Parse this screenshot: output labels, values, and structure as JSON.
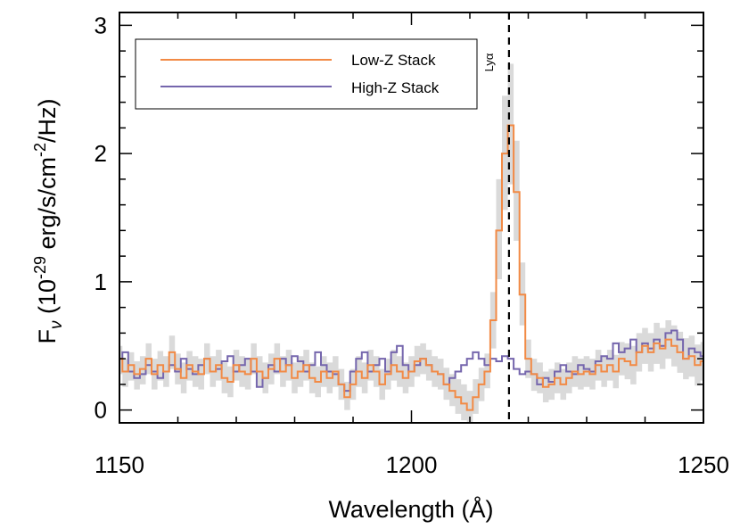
{
  "chart_data": {
    "type": "line",
    "title": "",
    "xlabel": "Wavelength (Å)",
    "ylabel": {
      "prefix": "F",
      "sub": "ν",
      "mid": " (10",
      "exp1": "-29",
      "mid2": " erg/s/cm",
      "exp2": "-2",
      "suffix": "/Hz)"
    },
    "xlim": [
      1150,
      1250
    ],
    "ylim": [
      -0.1,
      3.1
    ],
    "xticks": [
      1150,
      1200,
      1250
    ],
    "yticks": [
      0,
      1,
      2,
      3
    ],
    "grid": false,
    "legend_position": "top-left",
    "annotation": {
      "text": "Lyα",
      "x": 1216.7,
      "style": "dashed vertical line"
    },
    "colors": {
      "low_z": "#f28a45",
      "high_z": "#7566ad",
      "band": "#dadada",
      "marker": "#000000"
    },
    "x": [
      1150,
      1151,
      1152,
      1153,
      1154,
      1155,
      1156,
      1157,
      1158,
      1159,
      1160,
      1161,
      1162,
      1163,
      1164,
      1165,
      1166,
      1167,
      1168,
      1169,
      1170,
      1171,
      1172,
      1173,
      1174,
      1175,
      1176,
      1177,
      1178,
      1179,
      1180,
      1181,
      1182,
      1183,
      1184,
      1185,
      1186,
      1187,
      1188,
      1189,
      1190,
      1191,
      1192,
      1193,
      1194,
      1195,
      1196,
      1197,
      1198,
      1199,
      1200,
      1201,
      1202,
      1203,
      1204,
      1205,
      1206,
      1207,
      1208,
      1209,
      1210,
      1211,
      1212,
      1213,
      1214,
      1215,
      1216,
      1217,
      1218,
      1219,
      1220,
      1221,
      1222,
      1223,
      1224,
      1225,
      1226,
      1227,
      1228,
      1229,
      1230,
      1231,
      1232,
      1233,
      1234,
      1235,
      1236,
      1237,
      1238,
      1239,
      1240,
      1241,
      1242,
      1243,
      1244,
      1245,
      1246,
      1247,
      1248,
      1249,
      1250
    ],
    "series": [
      {
        "name": "Low-Z Stack",
        "values": [
          0.4,
          0.3,
          0.35,
          0.28,
          0.32,
          0.4,
          0.28,
          0.35,
          0.3,
          0.45,
          0.32,
          0.25,
          0.35,
          0.3,
          0.28,
          0.4,
          0.3,
          0.35,
          0.25,
          0.22,
          0.35,
          0.3,
          0.28,
          0.4,
          0.3,
          0.25,
          0.32,
          0.4,
          0.3,
          0.35,
          0.25,
          0.3,
          0.35,
          0.25,
          0.22,
          0.3,
          0.25,
          0.3,
          0.2,
          0.1,
          0.2,
          0.3,
          0.25,
          0.35,
          0.3,
          0.2,
          0.28,
          0.35,
          0.3,
          0.25,
          0.3,
          0.38,
          0.4,
          0.35,
          0.3,
          0.28,
          0.2,
          0.15,
          0.1,
          0.05,
          0.0,
          0.1,
          0.2,
          0.3,
          0.7,
          1.4,
          2.0,
          2.22,
          1.7,
          0.9,
          0.4,
          0.28,
          0.25,
          0.18,
          0.2,
          0.25,
          0.2,
          0.25,
          0.3,
          0.28,
          0.3,
          0.28,
          0.35,
          0.3,
          0.35,
          0.3,
          0.4,
          0.38,
          0.35,
          0.45,
          0.5,
          0.45,
          0.52,
          0.48,
          0.55,
          0.5,
          0.45,
          0.4,
          0.42,
          0.35,
          0.38
        ]
      },
      {
        "name": "High-Z Stack",
        "values": [
          0.4,
          0.45,
          0.3,
          0.25,
          0.28,
          0.35,
          0.3,
          0.25,
          0.3,
          0.35,
          0.3,
          0.4,
          0.32,
          0.28,
          0.35,
          0.4,
          0.3,
          0.32,
          0.38,
          0.42,
          0.3,
          0.35,
          0.4,
          0.3,
          0.18,
          0.25,
          0.35,
          0.3,
          0.4,
          0.35,
          0.42,
          0.38,
          0.3,
          0.35,
          0.45,
          0.35,
          0.3,
          0.28,
          0.2,
          0.15,
          0.3,
          0.4,
          0.45,
          0.3,
          0.35,
          0.4,
          0.3,
          0.45,
          0.5,
          0.35,
          0.3,
          0.35,
          0.4,
          0.35,
          0.3,
          0.28,
          0.2,
          0.25,
          0.3,
          0.35,
          0.4,
          0.45,
          0.4,
          0.35,
          0.4,
          0.38,
          0.42,
          0.4,
          0.32,
          0.28,
          0.3,
          0.28,
          0.2,
          0.25,
          0.22,
          0.3,
          0.35,
          0.3,
          0.28,
          0.35,
          0.32,
          0.3,
          0.38,
          0.42,
          0.4,
          0.52,
          0.45,
          0.48,
          0.55,
          0.45,
          0.52,
          0.48,
          0.55,
          0.5,
          0.6,
          0.62,
          0.55,
          0.4,
          0.48,
          0.45,
          0.42
        ]
      }
    ],
    "uncertainty_band": {
      "series": "Low-Z Stack",
      "upper": [
        0.5,
        0.4,
        0.45,
        0.38,
        0.42,
        0.52,
        0.4,
        0.46,
        0.42,
        0.58,
        0.44,
        0.37,
        0.46,
        0.42,
        0.4,
        0.52,
        0.42,
        0.47,
        0.37,
        0.34,
        0.47,
        0.42,
        0.4,
        0.52,
        0.42,
        0.37,
        0.44,
        0.52,
        0.42,
        0.47,
        0.37,
        0.42,
        0.47,
        0.37,
        0.34,
        0.42,
        0.37,
        0.42,
        0.32,
        0.22,
        0.32,
        0.42,
        0.37,
        0.47,
        0.42,
        0.32,
        0.4,
        0.47,
        0.42,
        0.37,
        0.42,
        0.5,
        0.52,
        0.47,
        0.42,
        0.4,
        0.33,
        0.28,
        0.24,
        0.2,
        0.15,
        0.24,
        0.33,
        0.44,
        0.92,
        1.8,
        2.45,
        2.7,
        2.1,
        1.15,
        0.55,
        0.4,
        0.37,
        0.3,
        0.32,
        0.37,
        0.32,
        0.37,
        0.42,
        0.4,
        0.42,
        0.4,
        0.47,
        0.42,
        0.47,
        0.43,
        0.53,
        0.52,
        0.5,
        0.6,
        0.64,
        0.6,
        0.68,
        0.64,
        0.7,
        0.66,
        0.61,
        0.56,
        0.58,
        0.51,
        0.53
      ],
      "lower": [
        0.28,
        0.18,
        0.23,
        0.16,
        0.2,
        0.28,
        0.16,
        0.23,
        0.18,
        0.32,
        0.2,
        0.13,
        0.23,
        0.18,
        0.16,
        0.28,
        0.18,
        0.23,
        0.13,
        0.1,
        0.23,
        0.18,
        0.16,
        0.28,
        0.18,
        0.13,
        0.2,
        0.28,
        0.18,
        0.23,
        0.13,
        0.18,
        0.23,
        0.13,
        0.1,
        0.18,
        0.13,
        0.18,
        0.08,
        0.0,
        0.08,
        0.18,
        0.13,
        0.23,
        0.18,
        0.08,
        0.16,
        0.23,
        0.18,
        0.13,
        0.18,
        0.26,
        0.28,
        0.23,
        0.18,
        0.16,
        0.08,
        0.03,
        -0.03,
        -0.08,
        -0.12,
        -0.03,
        0.07,
        0.17,
        0.48,
        1.02,
        1.56,
        1.76,
        1.32,
        0.66,
        0.25,
        0.15,
        0.13,
        0.06,
        0.08,
        0.13,
        0.08,
        0.13,
        0.18,
        0.16,
        0.18,
        0.16,
        0.23,
        0.18,
        0.23,
        0.17,
        0.27,
        0.24,
        0.2,
        0.3,
        0.36,
        0.3,
        0.36,
        0.32,
        0.4,
        0.34,
        0.29,
        0.24,
        0.26,
        0.19,
        0.23
      ]
    }
  }
}
